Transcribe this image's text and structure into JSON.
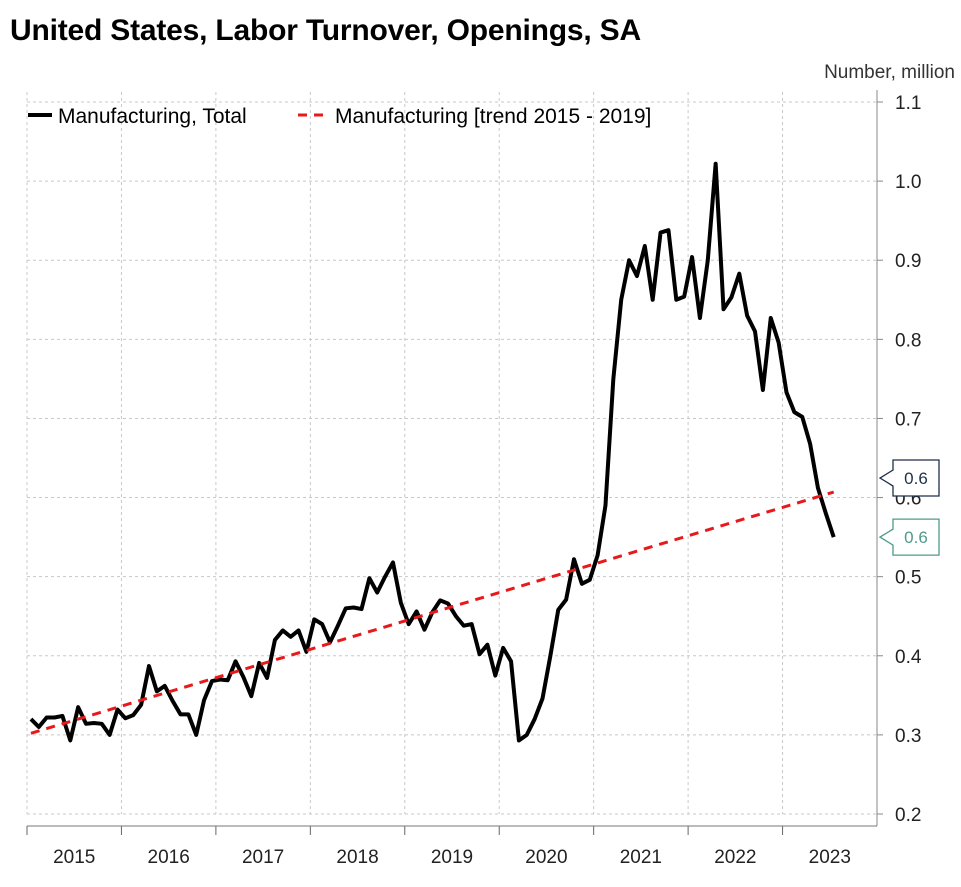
{
  "chart_data": {
    "type": "line",
    "title": "United States, Labor Turnover, Openings, SA",
    "ylabel": "Number, million",
    "ylim": [
      0.2,
      1.1
    ],
    "y_ticks": [
      "0.2",
      "0.3",
      "0.4",
      "0.5",
      "0.6",
      "0.7",
      "0.8",
      "0.9",
      "1.0",
      "1.1"
    ],
    "x_range": [
      "2015-01",
      "2023-12"
    ],
    "x_ticks": [
      "2015",
      "2016",
      "2017",
      "2018",
      "2019",
      "2020",
      "2021",
      "2022",
      "2023"
    ],
    "grid": true,
    "legend_position": "top-left",
    "series": [
      {
        "name": "Manufacturing, Total",
        "color": "#000000",
        "style": "solid",
        "x": [
          "2015-01",
          "2015-02",
          "2015-03",
          "2015-04",
          "2015-05",
          "2015-06",
          "2015-07",
          "2015-08",
          "2015-09",
          "2015-10",
          "2015-11",
          "2015-12",
          "2016-01",
          "2016-02",
          "2016-03",
          "2016-04",
          "2016-05",
          "2016-06",
          "2016-07",
          "2016-08",
          "2016-09",
          "2016-10",
          "2016-11",
          "2016-12",
          "2017-01",
          "2017-02",
          "2017-03",
          "2017-04",
          "2017-05",
          "2017-06",
          "2017-07",
          "2017-08",
          "2017-09",
          "2017-10",
          "2017-11",
          "2017-12",
          "2018-01",
          "2018-02",
          "2018-03",
          "2018-04",
          "2018-05",
          "2018-06",
          "2018-07",
          "2018-08",
          "2018-09",
          "2018-10",
          "2018-11",
          "2018-12",
          "2019-01",
          "2019-02",
          "2019-03",
          "2019-04",
          "2019-05",
          "2019-06",
          "2019-07",
          "2019-08",
          "2019-09",
          "2019-10",
          "2019-11",
          "2019-12",
          "2020-01",
          "2020-02",
          "2020-03",
          "2020-04",
          "2020-05",
          "2020-06",
          "2020-07",
          "2020-08",
          "2020-09",
          "2020-10",
          "2020-11",
          "2020-12",
          "2021-01",
          "2021-02",
          "2021-03",
          "2021-04",
          "2021-05",
          "2021-06",
          "2021-07",
          "2021-08",
          "2021-09",
          "2021-10",
          "2021-11",
          "2021-12",
          "2022-01",
          "2022-02",
          "2022-03",
          "2022-04",
          "2022-05",
          "2022-06",
          "2022-07",
          "2022-08",
          "2022-09",
          "2022-10",
          "2022-11",
          "2022-12",
          "2023-01",
          "2023-02",
          "2023-03",
          "2023-04",
          "2023-05",
          "2023-06",
          "2023-07"
        ],
        "values": [
          0.32,
          0.31,
          0.322,
          0.322,
          0.324,
          0.293,
          0.335,
          0.314,
          0.315,
          0.314,
          0.3,
          0.332,
          0.321,
          0.325,
          0.338,
          0.387,
          0.355,
          0.362,
          0.343,
          0.326,
          0.326,
          0.3,
          0.344,
          0.368,
          0.37,
          0.369,
          0.393,
          0.373,
          0.349,
          0.391,
          0.372,
          0.42,
          0.432,
          0.424,
          0.432,
          0.405,
          0.446,
          0.44,
          0.417,
          0.438,
          0.46,
          0.461,
          0.459,
          0.498,
          0.48,
          0.5,
          0.518,
          0.467,
          0.44,
          0.456,
          0.433,
          0.455,
          0.47,
          0.466,
          0.45,
          0.438,
          0.44,
          0.402,
          0.414,
          0.375,
          0.41,
          0.393,
          0.293,
          0.3,
          0.32,
          0.346,
          0.4,
          0.458,
          0.471,
          0.522,
          0.491,
          0.496,
          0.527,
          0.59,
          0.75,
          0.85,
          0.9,
          0.88,
          0.918,
          0.85,
          0.935,
          0.938,
          0.85,
          0.854,
          0.904,
          0.827,
          0.9,
          1.022,
          0.838,
          0.853,
          0.883,
          0.83,
          0.81,
          0.736,
          0.827,
          0.796,
          0.733,
          0.708,
          0.702,
          0.668,
          0.612,
          0.58,
          0.55
        ]
      },
      {
        "name": "Manufacturing [trend 2015 - 2019]",
        "color": "#e8191b",
        "style": "dashed",
        "x": [
          "2015-01",
          "2023-07"
        ],
        "values": [
          0.302,
          0.607
        ]
      }
    ],
    "callouts": [
      {
        "label": "0.6",
        "value": 0.607,
        "color": "#1f2f4a"
      },
      {
        "label": "0.6",
        "value": 0.55,
        "color": "#4f9a8a"
      }
    ]
  }
}
